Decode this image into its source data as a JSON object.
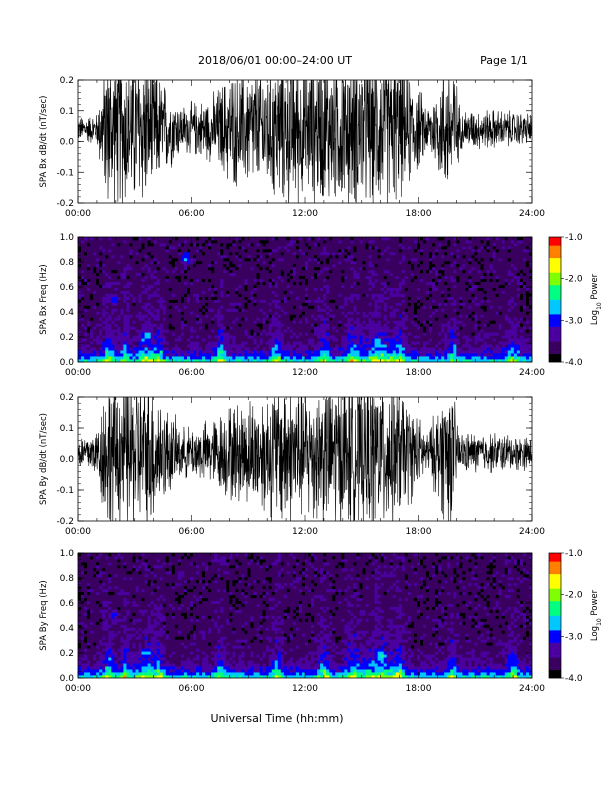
{
  "header": {
    "title": "2018/06/01   00:00–24:00 UT",
    "page": "Page 1/1"
  },
  "footer": {
    "xlabel": "Universal Time (hh:mm)"
  },
  "colorbar": {
    "ticks": [
      "-1.0",
      "-2.0",
      "-3.0",
      "-4.0"
    ],
    "label_prefix": "Log",
    "label_sub": "10",
    "label_suffix": " Power",
    "range": [
      -4.0,
      -1.0
    ],
    "colors": [
      "#000000",
      "#3a0060",
      "#4b00a0",
      "#0000ff",
      "#00c8ff",
      "#00ff80",
      "#80ff00",
      "#ffff00",
      "#ff8000",
      "#ff0000"
    ]
  },
  "chart_data": [
    {
      "type": "line",
      "ylabel": "SPA Bx dB/dt (nT/sec)",
      "ylim": [
        -0.2,
        0.2
      ],
      "yticks": [
        "0.2",
        "0.1",
        "0.0",
        "-0.1",
        "-0.2"
      ],
      "x_ticks": [
        "00:00",
        "06:00",
        "12:00",
        "18:00",
        "24:00"
      ],
      "xlim_hours": [
        0,
        24
      ],
      "baseline": 0.04,
      "activity_profile": [
        {
          "t": 0.0,
          "amp": 0.03
        },
        {
          "t": 1.0,
          "amp": 0.04
        },
        {
          "t": 1.5,
          "amp": 0.2
        },
        {
          "t": 2.5,
          "amp": 0.2
        },
        {
          "t": 3.5,
          "amp": 0.2
        },
        {
          "t": 4.5,
          "amp": 0.12
        },
        {
          "t": 5.5,
          "amp": 0.06
        },
        {
          "t": 7.0,
          "amp": 0.08
        },
        {
          "t": 8.0,
          "amp": 0.14
        },
        {
          "t": 9.5,
          "amp": 0.16
        },
        {
          "t": 11.0,
          "amp": 0.2
        },
        {
          "t": 12.0,
          "amp": 0.18
        },
        {
          "t": 14.0,
          "amp": 0.2
        },
        {
          "t": 16.5,
          "amp": 0.2
        },
        {
          "t": 17.6,
          "amp": 0.14
        },
        {
          "t": 18.5,
          "amp": 0.06
        },
        {
          "t": 19.8,
          "amp": 0.2
        },
        {
          "t": 20.2,
          "amp": 0.05
        },
        {
          "t": 22.0,
          "amp": 0.05
        },
        {
          "t": 24.0,
          "amp": 0.04
        }
      ]
    },
    {
      "type": "heatmap",
      "ylabel": "SPA Bx Freq (Hz)",
      "ylim": [
        0.0,
        1.0
      ],
      "yticks": [
        "1.0",
        "0.8",
        "0.6",
        "0.4",
        "0.2",
        "0.0"
      ],
      "x_ticks": [
        "00:00",
        "06:00",
        "12:00",
        "18:00",
        "24:00"
      ],
      "xlim_hours": [
        0,
        24
      ],
      "zlim": [
        -4.0,
        -1.0
      ],
      "features": [
        {
          "t": 5.7,
          "f": 0.83,
          "level": -2.8
        },
        {
          "t": 1.9,
          "f": 0.5,
          "level": -3.0
        },
        {
          "t": 3.6,
          "f": 0.2,
          "level": -2.6
        },
        {
          "t": 15.8,
          "f": 0.15,
          "level": -2.6
        }
      ]
    },
    {
      "type": "line",
      "ylabel": "SPA By dB/dt (nT/sec)",
      "ylim": [
        -0.2,
        0.2
      ],
      "yticks": [
        "0.2",
        "0.1",
        "0.0",
        "-0.1",
        "-0.2"
      ],
      "x_ticks": [
        "00:00",
        "06:00",
        "12:00",
        "18:00",
        "24:00"
      ],
      "xlim_hours": [
        0,
        24
      ],
      "baseline": 0.02,
      "activity_profile": [
        {
          "t": 0.0,
          "amp": 0.04
        },
        {
          "t": 1.0,
          "amp": 0.06
        },
        {
          "t": 1.5,
          "amp": 0.2
        },
        {
          "t": 2.5,
          "amp": 0.2
        },
        {
          "t": 3.8,
          "amp": 0.2
        },
        {
          "t": 4.6,
          "amp": 0.12
        },
        {
          "t": 5.5,
          "amp": 0.06
        },
        {
          "t": 7.0,
          "amp": 0.08
        },
        {
          "t": 8.0,
          "amp": 0.12
        },
        {
          "t": 9.5,
          "amp": 0.14
        },
        {
          "t": 11.0,
          "amp": 0.2
        },
        {
          "t": 12.0,
          "amp": 0.17
        },
        {
          "t": 14.0,
          "amp": 0.2
        },
        {
          "t": 16.5,
          "amp": 0.2
        },
        {
          "t": 17.6,
          "amp": 0.12
        },
        {
          "t": 18.5,
          "amp": 0.05
        },
        {
          "t": 19.6,
          "amp": 0.2
        },
        {
          "t": 20.2,
          "amp": 0.05
        },
        {
          "t": 22.0,
          "amp": 0.05
        },
        {
          "t": 24.0,
          "amp": 0.04
        }
      ]
    },
    {
      "type": "heatmap",
      "ylabel": "SPA By Freq (Hz)",
      "ylim": [
        0.0,
        1.0
      ],
      "yticks": [
        "1.0",
        "0.8",
        "0.6",
        "0.4",
        "0.2",
        "0.0"
      ],
      "x_ticks": [
        "00:00",
        "06:00",
        "12:00",
        "18:00",
        "24:00"
      ],
      "xlim_hours": [
        0,
        24
      ],
      "zlim": [
        -4.0,
        -1.0
      ],
      "features": [
        {
          "t": 5.4,
          "f": 0.83,
          "level": -3.2
        },
        {
          "t": 1.9,
          "f": 0.5,
          "level": -3.0
        },
        {
          "t": 3.6,
          "f": 0.2,
          "level": -2.6
        },
        {
          "t": 16.0,
          "f": 0.18,
          "level": -2.5
        }
      ]
    }
  ]
}
